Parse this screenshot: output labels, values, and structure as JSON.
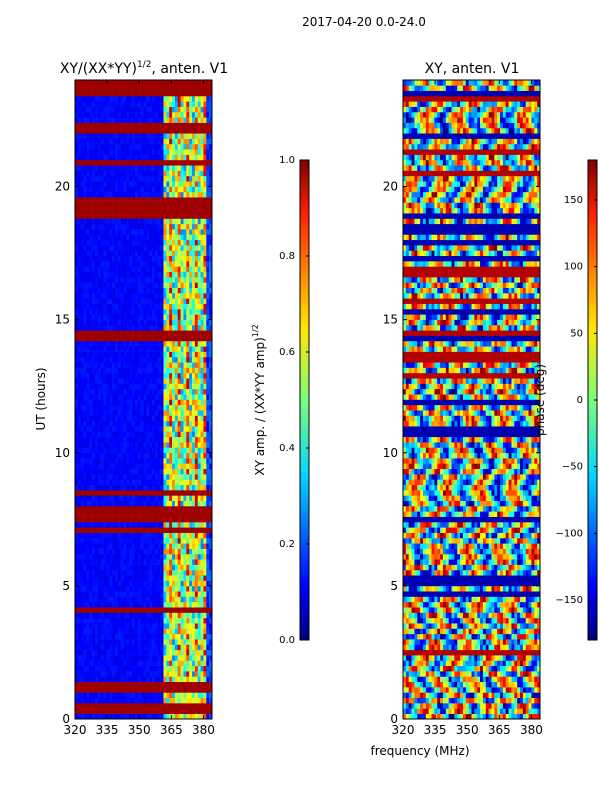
{
  "suptitle": "2017-04-20 0.0-24.0",
  "chart_data": [
    {
      "type": "heatmap",
      "title_main": "XY/(XX*YY)",
      "title_exp": "1/2",
      "title_rest": ", anten. V1",
      "xlabel": "",
      "ylabel": "UT (hours)",
      "xlim": [
        320,
        384
      ],
      "ylim": [
        0,
        24
      ],
      "xticks": [
        320,
        335,
        350,
        365,
        380
      ],
      "yticks": [
        0,
        5,
        10,
        15,
        20
      ],
      "colorbar": {
        "label_main": "XY amp. / (XX*YY amp)",
        "label_exp": "1/2",
        "range": [
          0.0,
          1.0
        ],
        "ticks": [
          "0.0",
          "0.2",
          "0.4",
          "0.6",
          "0.8",
          "1.0"
        ],
        "tick_values": [
          0.0,
          0.2,
          0.4,
          0.6,
          0.8,
          1.0
        ]
      }
    },
    {
      "type": "heatmap",
      "title": "XY, anten. V1",
      "xlabel": "frequency (MHz)",
      "ylabel": "",
      "xlim": [
        320,
        384
      ],
      "ylim": [
        0,
        24
      ],
      "xticks": [
        320,
        335,
        350,
        365,
        380
      ],
      "yticks": [
        0,
        5,
        10,
        15,
        20
      ],
      "colorbar": {
        "label": "phase (deg)",
        "range": [
          -180,
          180
        ],
        "ticks": [
          "−150",
          "−100",
          "−50",
          "0",
          "50",
          "100",
          "150"
        ],
        "tick_values": [
          -150,
          -100,
          -50,
          0,
          50,
          100,
          150
        ]
      }
    }
  ]
}
